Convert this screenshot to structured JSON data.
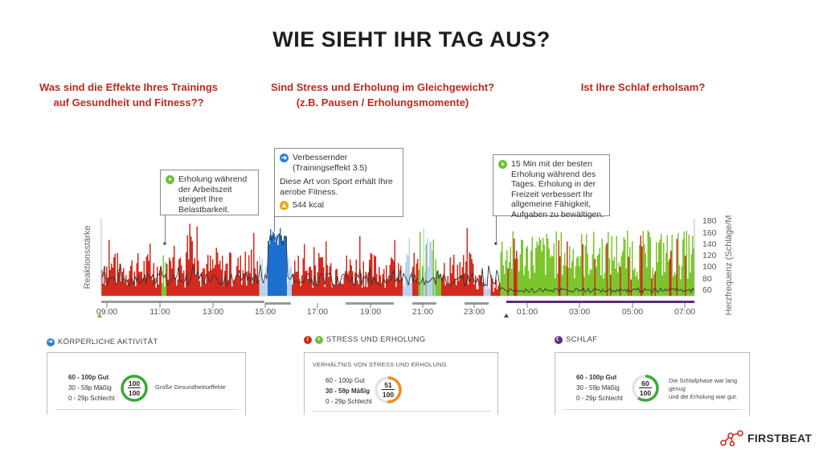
{
  "title": "WIE SIEHT IHR TAG AUS?",
  "questions": {
    "q1": "Was sind die Effekte Ihres Trainings\nauf Gesundheit und Fitness??",
    "q2": "Sind Stress und Erholung im Gleichgewicht?\n(z.B. Pausen / Erholungsmomente)",
    "q3": "Ist Ihre Schlaf erholsam?"
  },
  "callouts": {
    "recovery_work": {
      "icon": "plus-circle-icon",
      "text": "Erholung während\nder Arbeitszeit\nsteigert Ihre\nBelastbarkeit."
    },
    "training": {
      "icon": "running-icon",
      "text": "Verbessernder\n(Trainingseffekt 3.5)",
      "detail": "Diese Art von Sport erhält Ihre\naerobe Fitness.",
      "kcal": "544 kcal"
    },
    "best_recovery": {
      "icon": "plus-circle-icon",
      "text": "15 Min mit der besten\nErholung während des\nTages. Erholung in der\nFreizeit verbessert Ihr\nallgemeine Fähigkeit,\nAufgaben zu bewältigen."
    }
  },
  "chart": {
    "left_axis_label": "Reaktionsstärke",
    "right_axis_label": "Herzfrequenz (Schläge/M",
    "right_ticks": [
      "180",
      "160",
      "140",
      "120",
      "100",
      "80",
      "60"
    ],
    "time_ticks": [
      "09:00",
      "11:00",
      "13:00",
      "15:00",
      "17:00",
      "19:00",
      "21:00",
      "23:00",
      "01:00",
      "03:00",
      "05:00",
      "07:00"
    ],
    "colors": {
      "stress": "#d42a1e",
      "recovery": "#7cc52d",
      "exercise": "#1d6fcf",
      "light_activity": "#b9d3f0",
      "sleep_bar": "#5b2d7e",
      "activity_bar": "#9a9a9a",
      "hr_line": "#333333"
    }
  },
  "panels": {
    "activity": {
      "heading": "KÖRPERLICHE AKTIVITÄT",
      "icon": "running-icon",
      "legend": [
        "60 - 100p Gut",
        "30 - 59p Mäßig",
        "0 - 29p Schlecht"
      ],
      "score": "100",
      "max": "100",
      "score_fraction": 1.0,
      "color": "#3aaa35",
      "description": "Große Gesundheitseffekte"
    },
    "stress": {
      "heading": "STRESS UND ERHOLUNG",
      "icons": [
        "stress-icon",
        "recovery-icon"
      ],
      "subheading": "VERHÄLTNIS VON STRESS UND ERHOLUNG",
      "legend": [
        "60 - 100p Gut",
        "30 - 59p Mäßig",
        "0 - 29p Schlecht"
      ],
      "score": "51",
      "max": "100",
      "score_fraction": 0.51,
      "color": "#f08a24"
    },
    "sleep": {
      "heading": "SCHLAF",
      "icon": "moon-icon",
      "legend": [
        "60 - 100p Gut",
        "30 - 59p Mäßig",
        "0 - 29p Schlecht"
      ],
      "score": "60",
      "max": "100",
      "score_fraction": 0.6,
      "color": "#3aaa35",
      "description": "Die Schlafphase war lang genug\nund die Erholung war gut."
    }
  },
  "brand": {
    "name": "FIRSTBEAT",
    "color": "#d42a1e"
  }
}
